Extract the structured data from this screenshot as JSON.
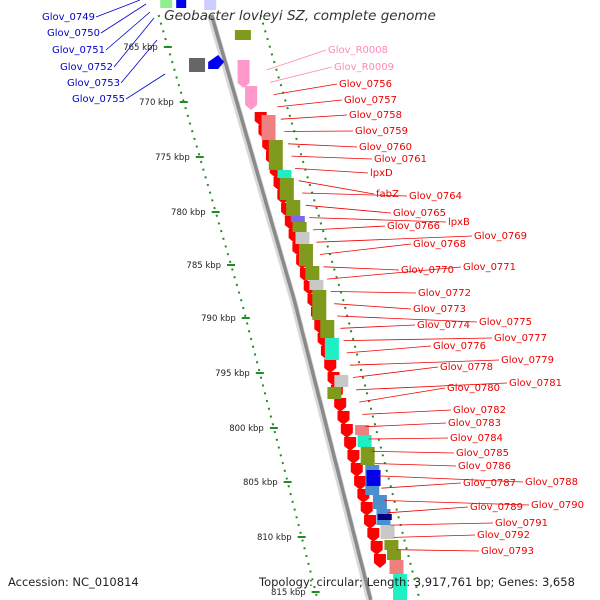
{
  "title": "Geobacter lovleyi SZ, complete genome",
  "footer": {
    "accession": "Accession: NC_010814",
    "summary": "Topology: circular; Length: 3,917,761 bp; Genes: 3,658"
  },
  "colors": {
    "blue_label": "#0000cc",
    "red_label": "#ee0000",
    "pink_label": "#ff88bb",
    "cds_red": "#ff0000",
    "cds_pink": "#ff99cc",
    "cds_blue": "#0000ee",
    "cds_gray": "#666666",
    "olive": "#7f9a1c",
    "teal": "#1ff0c4",
    "steel": "#4a90cc",
    "salmon": "#f08080",
    "light_gray": "#c8c8c8",
    "tick_green": "#228b22"
  },
  "kbp_markers": [
    "765 kbp",
    "770 kbp",
    "775 kbp",
    "780 kbp",
    "785 kbp",
    "790 kbp",
    "795 kbp",
    "800 kbp",
    "805 kbp",
    "810 kbp",
    "815 kbp"
  ],
  "genes_left": [
    "Glov_0749",
    "Glov_0750",
    "Glov_0751",
    "Glov_0752",
    "Glov_0753",
    "Glov_0755"
  ],
  "genes_right": [
    {
      "name": "Glov_R0008",
      "color": "pink"
    },
    {
      "name": "Glov_R0009",
      "color": "pink"
    },
    {
      "name": "Glov_0756",
      "color": "red"
    },
    {
      "name": "Glov_0757",
      "color": "red"
    },
    {
      "name": "Glov_0758",
      "color": "red"
    },
    {
      "name": "Glov_0759",
      "color": "red"
    },
    {
      "name": "Glov_0760",
      "color": "red"
    },
    {
      "name": "Glov_0761",
      "color": "red"
    },
    {
      "name": "lpxD",
      "color": "red"
    },
    {
      "name": "fabZ",
      "color": "red"
    },
    {
      "name": "Glov_0764",
      "color": "red"
    },
    {
      "name": "Glov_0765",
      "color": "red"
    },
    {
      "name": "lpxB",
      "color": "red"
    },
    {
      "name": "Glov_0766",
      "color": "red"
    },
    {
      "name": "Glov_0769",
      "color": "red"
    },
    {
      "name": "Glov_0768",
      "color": "red"
    },
    {
      "name": "Glov_0770",
      "color": "red"
    },
    {
      "name": "Glov_0771",
      "color": "red"
    },
    {
      "name": "Glov_0772",
      "color": "red"
    },
    {
      "name": "Glov_0773",
      "color": "red"
    },
    {
      "name": "Glov_0775",
      "color": "red"
    },
    {
      "name": "Glov_0774",
      "color": "red"
    },
    {
      "name": "Glov_0777",
      "color": "red"
    },
    {
      "name": "Glov_0776",
      "color": "red"
    },
    {
      "name": "Glov_0779",
      "color": "red"
    },
    {
      "name": "Glov_0778",
      "color": "red"
    },
    {
      "name": "Glov_0781",
      "color": "red"
    },
    {
      "name": "Glov_0780",
      "color": "red"
    },
    {
      "name": "Glov_0782",
      "color": "red"
    },
    {
      "name": "Glov_0783",
      "color": "red"
    },
    {
      "name": "Glov_0784",
      "color": "red"
    },
    {
      "name": "Glov_0785",
      "color": "red"
    },
    {
      "name": "Glov_0786",
      "color": "red"
    },
    {
      "name": "Glov_0788",
      "color": "red"
    },
    {
      "name": "Glov_0787",
      "color": "red"
    },
    {
      "name": "Glov_0790",
      "color": "red"
    },
    {
      "name": "Glov_0789",
      "color": "red"
    },
    {
      "name": "Glov_0791",
      "color": "red"
    },
    {
      "name": "Glov_0792",
      "color": "red"
    },
    {
      "name": "Glov_0793",
      "color": "red"
    }
  ]
}
